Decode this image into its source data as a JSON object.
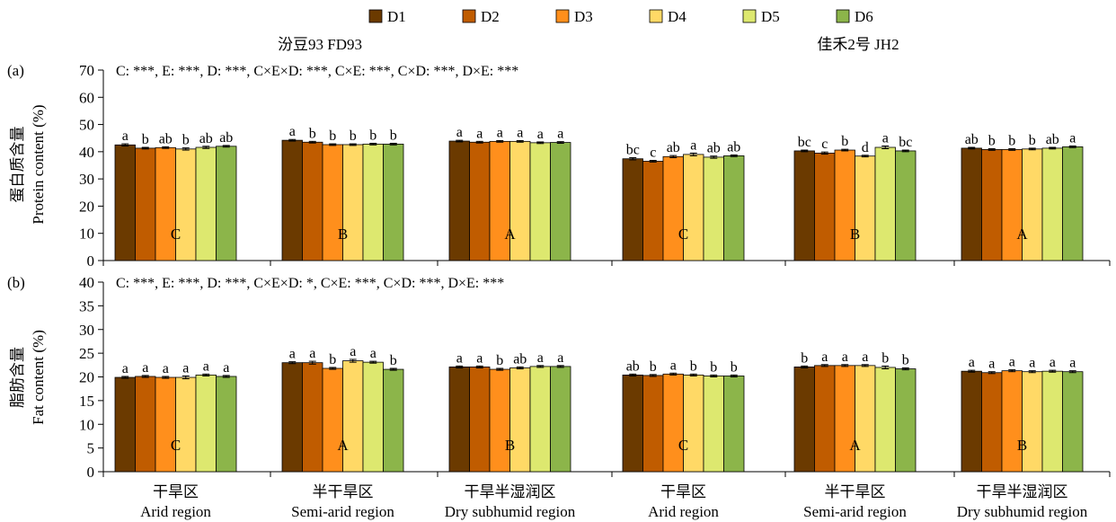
{
  "chart_data": {
    "type": "bar",
    "legend": {
      "position": "top",
      "entries": [
        {
          "name": "D1",
          "color": "#6b3a00"
        },
        {
          "name": "D2",
          "color": "#c05c00"
        },
        {
          "name": "D3",
          "color": "#ff8f1c"
        },
        {
          "name": "D4",
          "color": "#ffd966"
        },
        {
          "name": "D5",
          "color": "#dde86f"
        },
        {
          "name": "D6",
          "color": "#8cb54a"
        }
      ]
    },
    "cultivars": [
      {
        "label": "汾豆93 FD93"
      },
      {
        "label": "佳禾2号 JH2"
      }
    ],
    "categories": [
      {
        "zh": "干旱区",
        "en": "Arid region"
      },
      {
        "zh": "半干旱区",
        "en": "Semi-arid region"
      },
      {
        "zh": "干旱半湿润区",
        "en": "Dry subhumid region"
      },
      {
        "zh": "干旱区",
        "en": "Arid region"
      },
      {
        "zh": "半干旱区",
        "en": "Semi-arid region"
      },
      {
        "zh": "干旱半湿润区",
        "en": "Dry subhumid region"
      }
    ],
    "panels": [
      {
        "panel_label": "(a)",
        "ylabel_zh": "蛋白质含量",
        "ylabel_en": "Protein content (%)",
        "ylim": [
          0,
          70
        ],
        "yticks": [
          0,
          10,
          20,
          30,
          40,
          50,
          60,
          70
        ],
        "stats": "C: ***, E: ***, D: ***, C×E×D: ***, C×E: ***, C×D: ***, D×E: ***",
        "groups": [
          {
            "values": [
              42.5,
              41.3,
              41.5,
              41.0,
              41.6,
              42.0
            ],
            "errors": [
              0.4,
              0.3,
              0.3,
              0.4,
              0.4,
              0.3
            ],
            "letters": [
              "a",
              "b",
              "ab",
              "b",
              "ab",
              "ab"
            ],
            "region_letter": "C"
          },
          {
            "values": [
              44.2,
              43.5,
              42.6,
              42.6,
              42.8,
              42.8
            ],
            "errors": [
              0.3,
              0.3,
              0.3,
              0.3,
              0.3,
              0.3
            ],
            "letters": [
              "a",
              "b",
              "b",
              "b",
              "b",
              "b"
            ],
            "region_letter": "B"
          },
          {
            "values": [
              43.9,
              43.5,
              43.8,
              43.8,
              43.3,
              43.4
            ],
            "errors": [
              0.3,
              0.3,
              0.3,
              0.3,
              0.3,
              0.3
            ],
            "letters": [
              "a",
              "a",
              "a",
              "a",
              "a",
              "a"
            ],
            "region_letter": "A"
          },
          {
            "values": [
              37.4,
              36.5,
              38.2,
              39.0,
              38.0,
              38.5
            ],
            "errors": [
              0.4,
              0.3,
              0.4,
              0.5,
              0.4,
              0.3
            ],
            "letters": [
              "bc",
              "c",
              "ab",
              "a",
              "ab",
              "ab"
            ],
            "region_letter": "C"
          },
          {
            "values": [
              40.3,
              39.5,
              40.6,
              38.4,
              41.6,
              40.3
            ],
            "errors": [
              0.3,
              0.4,
              0.3,
              0.3,
              0.5,
              0.3
            ],
            "letters": [
              "bc",
              "c",
              "b",
              "d",
              "a",
              "bc"
            ],
            "region_letter": "B"
          },
          {
            "values": [
              41.3,
              40.8,
              40.8,
              41.0,
              41.3,
              41.8
            ],
            "errors": [
              0.3,
              0.3,
              0.3,
              0.3,
              0.3,
              0.3
            ],
            "letters": [
              "ab",
              "b",
              "b",
              "b",
              "ab",
              "a"
            ],
            "region_letter": "A"
          }
        ]
      },
      {
        "panel_label": "(b)",
        "ylabel_zh": "脂肪含量",
        "ylabel_en": "Fat content (%)",
        "ylim": [
          0,
          40
        ],
        "yticks": [
          0,
          5,
          10,
          15,
          20,
          25,
          30,
          35,
          40
        ],
        "stats": "C: ***, E: ***, D: ***, C×E×D: *, C×E: ***, C×D: ***, D×E: ***",
        "groups": [
          {
            "values": [
              19.9,
              20.1,
              19.9,
              19.9,
              20.4,
              20.1
            ],
            "errors": [
              0.2,
              0.2,
              0.2,
              0.3,
              0.2,
              0.2
            ],
            "letters": [
              "a",
              "a",
              "a",
              "a",
              "a",
              "a"
            ],
            "region_letter": "C"
          },
          {
            "values": [
              23.0,
              23.0,
              21.8,
              23.4,
              23.1,
              21.6
            ],
            "errors": [
              0.2,
              0.3,
              0.2,
              0.3,
              0.2,
              0.2
            ],
            "letters": [
              "a",
              "a",
              "b",
              "a",
              "a",
              "b"
            ],
            "region_letter": "A"
          },
          {
            "values": [
              22.1,
              22.1,
              21.6,
              21.9,
              22.2,
              22.2
            ],
            "errors": [
              0.2,
              0.2,
              0.2,
              0.2,
              0.2,
              0.2
            ],
            "letters": [
              "a",
              "a",
              "b",
              "ab",
              "a",
              "a"
            ],
            "region_letter": "B"
          },
          {
            "values": [
              20.4,
              20.3,
              20.6,
              20.4,
              20.2,
              20.2
            ],
            "errors": [
              0.2,
              0.2,
              0.2,
              0.2,
              0.2,
              0.2
            ],
            "letters": [
              "ab",
              "b",
              "a",
              "b",
              "b",
              "b"
            ],
            "region_letter": "C"
          },
          {
            "values": [
              22.1,
              22.4,
              22.4,
              22.4,
              22.0,
              21.7
            ],
            "errors": [
              0.2,
              0.2,
              0.2,
              0.2,
              0.3,
              0.2
            ],
            "letters": [
              "b",
              "a",
              "a",
              "a",
              "b",
              "b"
            ],
            "region_letter": "A"
          },
          {
            "values": [
              21.2,
              20.9,
              21.3,
              21.1,
              21.2,
              21.1
            ],
            "errors": [
              0.2,
              0.2,
              0.2,
              0.2,
              0.2,
              0.2
            ],
            "letters": [
              "a",
              "a",
              "a",
              "a",
              "a",
              "a"
            ],
            "region_letter": "B"
          }
        ]
      }
    ]
  }
}
